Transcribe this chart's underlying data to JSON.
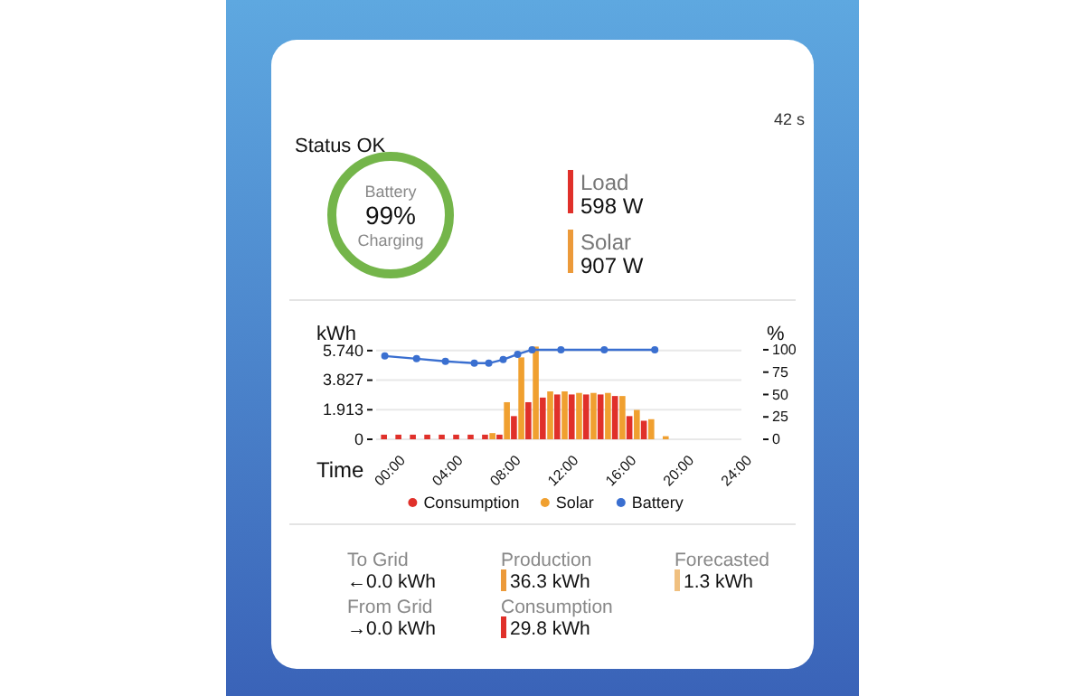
{
  "chart_data": [
    {
      "type": "other",
      "title": "Status OK",
      "annotations": [
        "42 s",
        "Load",
        "598 W",
        "Solar",
        "907 W"
      ],
      "colors": [
        null,
        "#e0302a",
        "#ec9a3a"
      ]
    },
    {
      "type": "other",
      "title": "Battery",
      "annotations": [
        "99%",
        "Charging"
      ],
      "colors": [
        "#74b54a"
      ]
    },
    {
      "type": "bar",
      "xlabel": "Time",
      "ylabel": "kWh",
      "y2label": "%",
      "legend": "bottom",
      "x": [
        0,
        1,
        2,
        3,
        4,
        5,
        6,
        7,
        8,
        9,
        10,
        11,
        12,
        13,
        14,
        15,
        16,
        17,
        18,
        19
      ],
      "xlim": [
        -0.8,
        24.5
      ],
      "xticks": [
        {
          "value": 0,
          "label": "00:00"
        },
        {
          "value": 4,
          "label": "04:00"
        },
        {
          "value": 8,
          "label": "08:00"
        },
        {
          "value": 12,
          "label": "12:00"
        },
        {
          "value": 16,
          "label": "16:00"
        },
        {
          "value": 20,
          "label": "20:00"
        },
        {
          "value": 24,
          "label": "24:00"
        }
      ],
      "ylim": [
        0,
        6.2
      ],
      "yticks": [
        0,
        1.913,
        3.827,
        {
          "value": 5.74,
          "label": "5.740"
        }
      ],
      "y2lim": [
        0,
        107
      ],
      "y2ticks": [
        0,
        25,
        50,
        75,
        100
      ],
      "grid": "y",
      "series": [
        {
          "name": "Consumption",
          "color": "#e0302a",
          "values": [
            0.3,
            0.3,
            0.3,
            0.3,
            0.3,
            0.3,
            0.3,
            0.3,
            0.3,
            1.5,
            2.4,
            2.7,
            2.9,
            2.9,
            2.9,
            2.9,
            2.8,
            1.5,
            1.2,
            null
          ]
        },
        {
          "name": "Solar",
          "color": "#f0a030",
          "values": [
            null,
            null,
            null,
            null,
            null,
            null,
            null,
            0.4,
            2.4,
            5.3,
            6.0,
            3.1,
            3.1,
            3.0,
            3.0,
            3.0,
            2.8,
            1.9,
            1.3,
            0.2
          ]
        },
        {
          "name": "Battery",
          "type": "line",
          "axis": "y2",
          "color": "#3a6fd0",
          "marker": "circle",
          "x": [
            -0.2,
            2,
            4,
            6,
            7,
            8,
            9,
            10,
            12,
            15,
            18.5
          ],
          "values": [
            93,
            90,
            87,
            85,
            85,
            89,
            95,
            100,
            100,
            100,
            100
          ]
        }
      ]
    },
    {
      "type": "other",
      "annotations": [
        "To Grid",
        "←0.0 kWh",
        "From Grid",
        "→0.0 kWh",
        "Production",
        "36.3 kWh",
        "Consumption",
        "29.8 kWh",
        "Forecasted",
        "1.3 kWh"
      ],
      "colors": [
        null,
        null,
        "#ec9a3a",
        "#e0302a",
        "#f0c080"
      ]
    }
  ]
}
